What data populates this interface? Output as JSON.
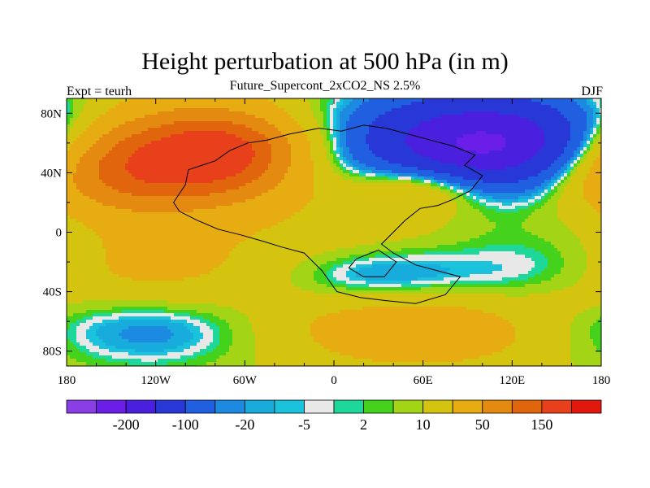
{
  "chart_data": {
    "type": "heatmap",
    "title": "Height perturbation at 500 hPa (in m)",
    "subtitle": "Future_Supercont_2xCO2_NS 2.5%",
    "left_string": "Expt = teurh",
    "right_string": "DJF",
    "x_ticks": [
      "180",
      "120W",
      "60W",
      "0",
      "60E",
      "120E",
      "180"
    ],
    "x_values": [
      -180,
      -120,
      -60,
      0,
      60,
      120,
      180
    ],
    "y_ticks": [
      "80N",
      "40N",
      "0",
      "40S",
      "80S"
    ],
    "y_values": [
      80,
      40,
      0,
      -40,
      -80
    ],
    "xlim": [
      -180,
      180
    ],
    "ylim": [
      -90,
      90
    ],
    "grid": false,
    "legend": "bottom",
    "colorbar": {
      "colors": [
        "#8a3ee6",
        "#6a1ee8",
        "#4a1fdd",
        "#2838d6",
        "#1f5fe0",
        "#1d8ae2",
        "#17acdc",
        "#1ac2dc",
        "#e8e8e8",
        "#1ed79a",
        "#44d21c",
        "#a4d416",
        "#d4c410",
        "#e6ac12",
        "#e58a10",
        "#e0650c",
        "#e8401a",
        "#e0180e"
      ],
      "labels": [
        "-200",
        "-100",
        "-20",
        "-5",
        "2",
        "10",
        "50",
        "150"
      ],
      "label_after_box": [
        1,
        3,
        5,
        7,
        9,
        11,
        13,
        15
      ]
    },
    "features": [
      {
        "lon": -140,
        "lat": 45,
        "value": 160,
        "rx": 55,
        "ry": 22
      },
      {
        "lon": -70,
        "lat": 55,
        "value": 120,
        "rx": 35,
        "ry": 18
      },
      {
        "lon": -105,
        "lat": 55,
        "value": 60,
        "rx": 70,
        "ry": 30
      },
      {
        "lon": 120,
        "lat": 55,
        "value": -130,
        "rx": 60,
        "ry": 22
      },
      {
        "lon": 90,
        "lat": 65,
        "value": -80,
        "rx": 80,
        "ry": 25
      },
      {
        "lon": -20,
        "lat": 45,
        "value": -8,
        "rx": 40,
        "ry": 10
      },
      {
        "lon": 20,
        "lat": 10,
        "value": 15,
        "rx": 90,
        "ry": 25
      },
      {
        "lon": 60,
        "lat": 30,
        "value": 60,
        "rx": 30,
        "ry": 12
      },
      {
        "lon": -120,
        "lat": 15,
        "value": -4,
        "rx": 70,
        "ry": 10
      },
      {
        "lon": 130,
        "lat": -25,
        "value": -30,
        "rx": 45,
        "ry": 25
      },
      {
        "lon": 30,
        "lat": -30,
        "value": -40,
        "rx": 45,
        "ry": 14
      },
      {
        "lon": -130,
        "lat": -25,
        "value": 40,
        "rx": 60,
        "ry": 20
      },
      {
        "lon": -130,
        "lat": -65,
        "value": -40,
        "rx": 65,
        "ry": 18
      },
      {
        "lon": 60,
        "lat": -65,
        "value": 70,
        "rx": 70,
        "ry": 18
      },
      {
        "lon": 160,
        "lat": -45,
        "value": 12,
        "rx": 25,
        "ry": 10
      },
      {
        "lon": 170,
        "lat": -10,
        "value": -8,
        "rx": 25,
        "ry": 30
      }
    ],
    "background_value": 20
  }
}
